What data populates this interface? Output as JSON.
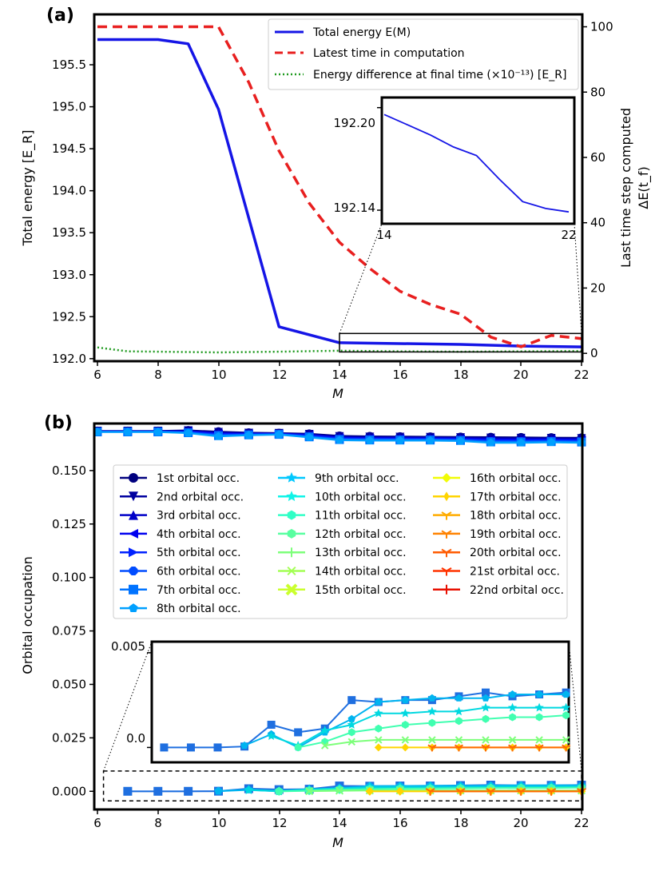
{
  "chart_data": [
    {
      "panel_label": "(a)",
      "type": "line",
      "xlabel": "M",
      "ylabel": "Total energy [E_R]",
      "ylabel_right_1": "Last time step computed",
      "ylabel_right_2": "ΔE(t_f)",
      "xlim": [
        6,
        22
      ],
      "ylim": [
        191.97,
        196.1
      ],
      "ylim_right": [
        -2.4,
        103.8
      ],
      "x_ticks": [
        "6",
        "8",
        "10",
        "12",
        "14",
        "16",
        "18",
        "20",
        "22"
      ],
      "y_ticks": [
        "192.0",
        "192.5",
        "193.0",
        "193.5",
        "194.0",
        "194.5",
        "195.0",
        "195.5"
      ],
      "y_right_ticks": [
        "0",
        "20",
        "40",
        "60",
        "80",
        "100"
      ],
      "legend_position": "top-right",
      "series": [
        {
          "name": "Total energy E(M)",
          "axis": "left",
          "color": "#1515e6",
          "style": "solid",
          "x": [
            6,
            8,
            9,
            10,
            12,
            14,
            18,
            20,
            22
          ],
          "y": [
            195.8,
            195.8,
            195.75,
            194.97,
            192.38,
            192.19,
            192.17,
            192.15,
            192.14
          ]
        },
        {
          "name": "Latest time in computation",
          "axis": "right",
          "color": "#e81f1f",
          "style": "dashed",
          "x": [
            6,
            7,
            8,
            9,
            10,
            11,
            12,
            13,
            14,
            15,
            16,
            17,
            18,
            19,
            20,
            21,
            22
          ],
          "y": [
            100,
            100,
            100,
            100,
            100,
            83,
            62,
            46,
            34,
            26,
            19,
            15,
            12,
            5,
            2,
            5.5,
            4.5
          ]
        },
        {
          "name": "Energy difference at final time (×10⁻¹³) [E_R]",
          "axis": "right",
          "color": "#1f9a1f",
          "style": "dotted",
          "x": [
            6,
            7,
            8,
            10,
            12,
            14,
            16,
            18,
            20,
            22
          ],
          "y": [
            1.8,
            0.6,
            0.5,
            0.3,
            0.5,
            0.8,
            0.6,
            0.5,
            0.6,
            0.7
          ]
        }
      ],
      "zoom_box": {
        "xlim": [
          14,
          22
        ],
        "ylim": [
          192.08,
          192.3
        ]
      },
      "inset": {
        "xlim": [
          14,
          22
        ],
        "ylim": [
          192.133,
          192.205
        ],
        "x_ticks": [
          "14",
          "22"
        ],
        "y_ticks": [
          "192.14",
          "192.20"
        ],
        "y_tick_values": [
          192.14,
          192.2
        ],
        "x": [
          14,
          15,
          16,
          17,
          18,
          19,
          20,
          21,
          22
        ],
        "y": [
          192.196,
          192.19,
          192.184,
          192.177,
          192.172,
          192.158,
          192.145,
          192.141,
          192.139
        ]
      }
    },
    {
      "panel_label": "(b)",
      "type": "line",
      "xlabel": "M",
      "ylabel": "Orbital occupation",
      "xlim": [
        6,
        22
      ],
      "ylim": [
        -0.0085,
        0.172
      ],
      "x_ticks": [
        "6",
        "8",
        "10",
        "12",
        "14",
        "16",
        "18",
        "20",
        "22"
      ],
      "y_ticks": [
        "0.000",
        "0.025",
        "0.050",
        "0.075",
        "0.100",
        "0.125",
        "0.150"
      ],
      "y_tick_values": [
        0,
        0.025,
        0.05,
        0.075,
        0.1,
        0.125,
        0.15
      ],
      "legend_position": "upper-center",
      "legend_entries": [
        "1st orbital occ.",
        "2nd orbital occ.",
        "3rd orbital occ.",
        "4th orbital occ.",
        "5th orbital occ.",
        "6th orbital occ.",
        "7th orbital occ.",
        "8th orbital occ.",
        "9th orbital occ.",
        "10th orbital occ.",
        "11th orbital occ.",
        "12th orbital occ.",
        "13th orbital occ.",
        "14th orbital occ.",
        "15th orbital occ.",
        "16th orbital occ.",
        "17th orbital occ.",
        "18th orbital occ.",
        "19th orbital occ.",
        "20th orbital occ.",
        "21st orbital occ.",
        "22nd orbital occ."
      ],
      "legend_colors": [
        "#00007f",
        "#00009f",
        "#0000c8",
        "#0000ef",
        "#0021ff",
        "#004cff",
        "#0073ff",
        "#00a0ff",
        "#00c8ff",
        "#0ff4e8",
        "#30ffc6",
        "#58ffa0",
        "#7dff7a",
        "#a3ff53",
        "#caff2d",
        "#f1fc06",
        "#ffd400",
        "#ffac00",
        "#ff8200",
        "#ff5b00",
        "#ff3300",
        "#e80f00"
      ],
      "legend_markers": [
        "circle",
        "triangle-down",
        "triangle-up",
        "triangle-left",
        "triangle-right",
        "octagon",
        "square",
        "pentagon",
        "star",
        "star",
        "hexagon",
        "hexagon",
        "plus",
        "x",
        "x-filled",
        "diamond",
        "thin-diamond",
        "tri-down",
        "tri-up",
        "tri-left",
        "tri-right",
        "plus"
      ],
      "top_group": {
        "x": [
          6,
          7,
          8,
          9,
          10,
          11,
          12,
          13,
          14,
          15,
          16,
          17,
          18,
          19,
          20,
          21,
          22
        ],
        "upper": [
          0.1685,
          0.1685,
          0.1685,
          0.1688,
          0.1682,
          0.1677,
          0.1675,
          0.1672,
          0.1662,
          0.166,
          0.1659,
          0.1658,
          0.1657,
          0.1656,
          0.1655,
          0.1654,
          0.1653
        ],
        "lower": [
          0.168,
          0.168,
          0.168,
          0.1675,
          0.166,
          0.1665,
          0.1668,
          0.1655,
          0.1642,
          0.164,
          0.164,
          0.164,
          0.1638,
          0.163,
          0.163,
          0.1632,
          0.163
        ]
      },
      "zoom_box": {
        "xlim": [
          6.2,
          22
        ],
        "ylim": [
          -0.0045,
          0.0095
        ]
      },
      "inset": {
        "xlim": [
          6.6,
          22.1
        ],
        "ylim": [
          -0.0007,
          0.0055
        ],
        "y_ticks": [
          "0.0",
          "0.005"
        ],
        "y_tick_values": [
          0,
          0.005
        ],
        "groups": [
          {
            "color": "#1f6fe0",
            "marker": "square",
            "x": [
              7,
              8,
              9,
              10,
              11,
              12,
              13,
              14,
              15,
              16,
              17,
              18,
              19,
              20,
              21,
              22
            ],
            "y": [
              0,
              0,
              0,
              5e-05,
              0.0012,
              0.0008,
              0.001,
              0.0025,
              0.0024,
              0.0025,
              0.0025,
              0.0027,
              0.0029,
              0.0027,
              0.0028,
              0.0029
            ]
          },
          {
            "color": "#00b4f0",
            "marker": "pentagon",
            "x": [
              10,
              11,
              12,
              13,
              14,
              15,
              16,
              17,
              18,
              19,
              20,
              21,
              22
            ],
            "y": [
              0.0001,
              0.0007,
              0,
              0.0008,
              0.0015,
              0.0024,
              0.0025,
              0.0026,
              0.0026,
              0.0026,
              0.0028,
              0.0028,
              0.0028
            ]
          },
          {
            "color": "#00d8e0",
            "marker": "star",
            "x": [
              11,
              12,
              13,
              14,
              15,
              16,
              17,
              18,
              19,
              20,
              21,
              22
            ],
            "y": [
              0.0006,
              0.0001,
              0.0009,
              0.0012,
              0.0018,
              0.0018,
              0.0019,
              0.0019,
              0.0021,
              0.0021,
              0.0021,
              0.0021
            ]
          },
          {
            "color": "#40ffb0",
            "marker": "hexagon",
            "x": [
              12,
              13,
              14,
              15,
              16,
              17,
              18,
              19,
              20,
              21,
              22
            ],
            "y": [
              0,
              0.0003,
              0.0008,
              0.001,
              0.0012,
              0.0013,
              0.0014,
              0.0015,
              0.0016,
              0.0016,
              0.0017
            ]
          },
          {
            "color": "#7dff7a",
            "marker": "x",
            "x": [
              13,
              14,
              15,
              16,
              17,
              18,
              19,
              20,
              21,
              22
            ],
            "y": [
              0.0001,
              0.0003,
              0.0004,
              0.0004,
              0.0004,
              0.0004,
              0.0004,
              0.0004,
              0.0004,
              0.0004
            ]
          },
          {
            "color": "#ffd400",
            "marker": "diamond",
            "x": [
              15,
              16,
              17,
              18,
              19,
              20,
              21,
              22
            ],
            "y": [
              0,
              0,
              0,
              0,
              0,
              0,
              0,
              0
            ]
          },
          {
            "color": "#ff6a00",
            "marker": "tri-down",
            "x": [
              17,
              18,
              19,
              20,
              21,
              22
            ],
            "y": [
              0,
              0,
              0,
              0,
              0,
              0
            ]
          }
        ]
      }
    }
  ]
}
